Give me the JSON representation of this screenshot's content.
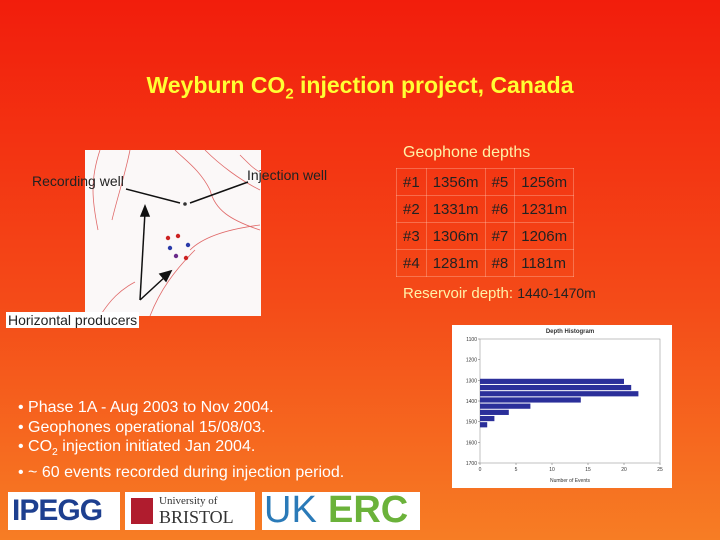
{
  "title": {
    "pre": "Weyburn CO",
    "sub": "2",
    "post": " injection project, Canada"
  },
  "map": {
    "recording": "Recording well",
    "injection": "Injection well",
    "producers": "Horizontal producers"
  },
  "geophones": {
    "title": "Geophone depths",
    "rows": [
      [
        "#1",
        "1356m",
        "#5",
        "1256m"
      ],
      [
        "#2",
        "1331m",
        "#6",
        "1231m"
      ],
      [
        "#3",
        "1306m",
        "#7",
        "1206m"
      ],
      [
        "#4",
        "1281m",
        "#8",
        "1181m"
      ]
    ]
  },
  "reservoir": {
    "label": "Reservoir depth:",
    "value": "1440-1470m"
  },
  "bullets": [
    "Phase 1A - Aug 2003 to Nov 2004.",
    "Geophones operational 15/08/03.",
    {
      "pre": "CO",
      "sub": "2",
      "post": " injection initiated Jan 2004."
    },
    "~ 60 events recorded during injection period."
  ],
  "logos": {
    "ipegg": "IPEGG",
    "uni": "University of",
    "bristol": "BRISTOL",
    "uk": "UK",
    "erc": "ERC"
  },
  "chart_data": {
    "type": "histogram",
    "title": "Depth Histogram",
    "xlabel": "Number of Events",
    "bins": [
      1290,
      1320,
      1350,
      1380,
      1410,
      1440,
      1470,
      1500,
      1530
    ],
    "counts": [
      20,
      21,
      22,
      14,
      7,
      4,
      2,
      1
    ],
    "color": "#2b2f9a",
    "xlim": [
      0,
      25
    ],
    "xticks": [
      0,
      5,
      10,
      15,
      20,
      25
    ],
    "ylim": [
      1100,
      1700
    ],
    "yticks": [
      1100,
      1200,
      1300,
      1400,
      1500,
      1600,
      1700
    ],
    "y_inverted": true
  }
}
